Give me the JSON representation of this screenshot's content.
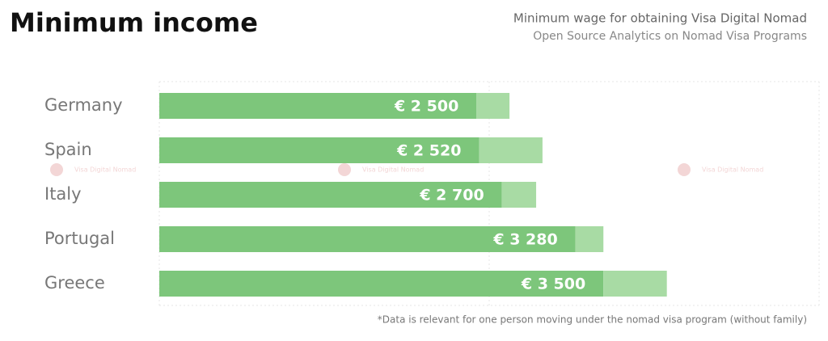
{
  "chart_data": {
    "type": "bar",
    "orientation": "horizontal",
    "title": "Minimum income",
    "subtitle": [
      "Minimum wage for obtaining Visa Digital Nomad",
      "Open Source Analytics on Nomad Visa Programs"
    ],
    "footnote": "*Data is relevant for one person moving under the nomad visa program (without family)",
    "watermark": "Visa Digital Nomad",
    "categories": [
      "Germany",
      "Spain",
      "Italy",
      "Portugal",
      "Greece"
    ],
    "series": [
      {
        "color": "#7dc67b",
        "values": [
          2500,
          2520,
          2700,
          3280,
          3500
        ],
        "value_labels": [
          "€ 2 500",
          "€ 2 520",
          "€ 2 700",
          "€ 3 280",
          "€ 3 500"
        ]
      },
      {
        "color": "#a8dba4",
        "values": [
          260,
          500,
          270,
          220,
          500
        ]
      }
    ],
    "xlim": [
      0,
      5200
    ],
    "stacked": true
  }
}
